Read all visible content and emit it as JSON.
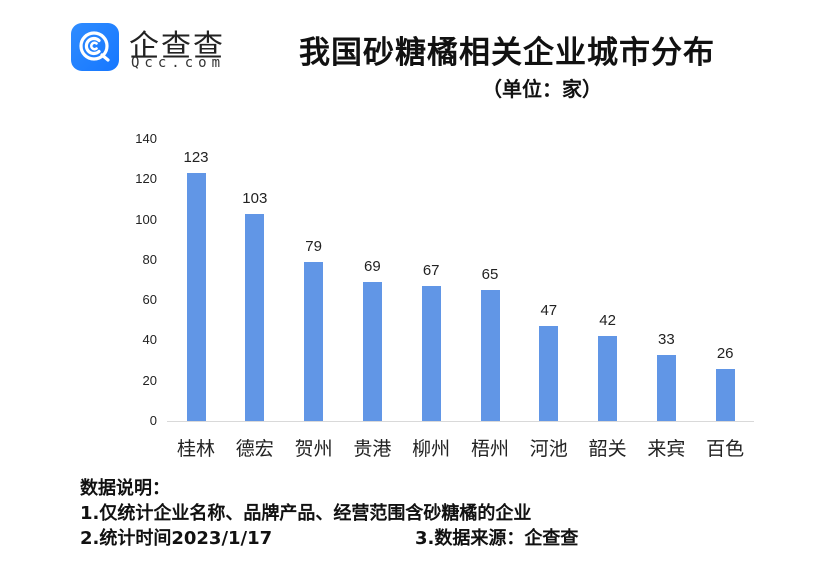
{
  "brand": {
    "name": "企查查",
    "domain": "Qcc.com",
    "badge_color": "#1677ff"
  },
  "header": {
    "title": "我国砂糖橘相关企业城市分布",
    "subtitle": "（单位：家）"
  },
  "chart_data": {
    "type": "bar",
    "title": "我国砂糖橘相关企业城市分布",
    "subtitle": "（单位：家）",
    "xlabel": "",
    "ylabel": "",
    "categories": [
      "桂林",
      "德宏",
      "贺州",
      "贵港",
      "柳州",
      "梧州",
      "河池",
      "韶关",
      "来宾",
      "百色"
    ],
    "values": [
      123,
      103,
      79,
      69,
      67,
      65,
      47,
      42,
      33,
      26
    ],
    "ylim": [
      0,
      140
    ],
    "yticks": [
      0,
      20,
      40,
      60,
      80,
      100,
      120,
      140
    ],
    "grid": false,
    "legend": null,
    "data_labels": true,
    "bar_color": "#6196e6"
  },
  "notes": {
    "heading": "数据说明：",
    "line1": "1.仅统计企业名称、品牌产品、经营范围含砂糖橘的企业",
    "line2": "2.统计时间2023/1/17",
    "line3": "3.数据来源：企查查"
  }
}
